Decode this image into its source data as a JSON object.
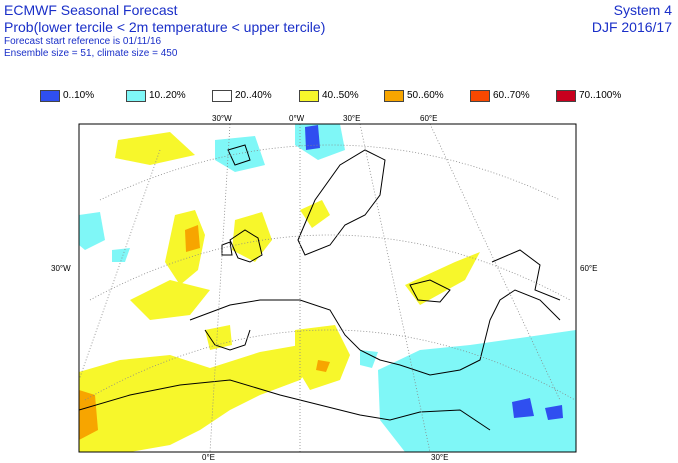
{
  "header": {
    "title": "ECMWF Seasonal Forecast",
    "subtitle": "Prob(lower tercile < 2m temperature < upper tercile)",
    "forecast_ref": "Forecast start reference is 01/11/16",
    "ensemble": "Ensemble size = 51, climate size = 450",
    "system": "System 4",
    "period": "DJF 2016/17"
  },
  "legend": [
    {
      "label": "0..10%",
      "color": "#2f4ff0"
    },
    {
      "label": "10..20%",
      "color": "#7ff7f7"
    },
    {
      "label": "20..40%",
      "color": "#ffffff"
    },
    {
      "label": "40..50%",
      "color": "#f7f72b"
    },
    {
      "label": "50..60%",
      "color": "#f7a500"
    },
    {
      "label": "60..70%",
      "color": "#f74800"
    },
    {
      "label": "70..100%",
      "color": "#c8001e"
    }
  ],
  "map_labels": {
    "lon_top": [
      "30°W",
      "0°W",
      "30°E",
      "60°E"
    ],
    "lon_bottom": [
      "0°E",
      "30°E"
    ],
    "lat_left": "30°W",
    "lat_right": "60°E"
  }
}
